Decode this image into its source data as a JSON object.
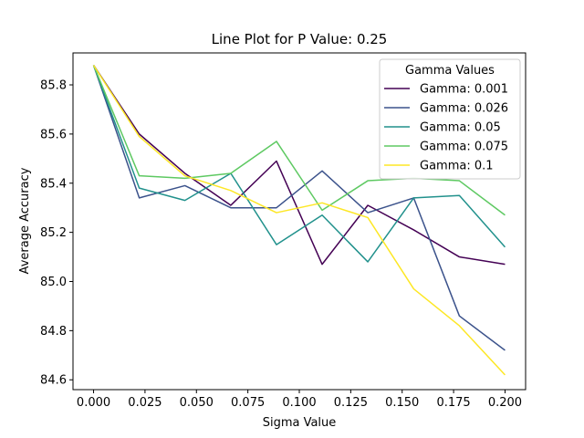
{
  "chart_data": {
    "type": "line",
    "title": "Line Plot for P Value: 0.25",
    "xlabel": "Sigma Value",
    "ylabel": "Average Accuracy",
    "xlim": [
      -0.01,
      0.21
    ],
    "ylim": [
      84.56,
      85.93
    ],
    "xticks": [
      "0.000",
      "0.025",
      "0.050",
      "0.075",
      "0.100",
      "0.125",
      "0.150",
      "0.175",
      "0.200"
    ],
    "yticks": [
      "84.6",
      "84.8",
      "85.0",
      "85.2",
      "85.4",
      "85.6",
      "85.8"
    ],
    "grid": false,
    "legend_title": "Gamma Values",
    "legend_position": "top-right",
    "x": [
      0.0,
      0.0222,
      0.0444,
      0.0667,
      0.0889,
      0.1111,
      0.1333,
      0.1556,
      0.1778,
      0.2
    ],
    "series": [
      {
        "name": "Gamma: 0.001",
        "color": "#440154",
        "values": [
          85.88,
          85.6,
          85.44,
          85.31,
          85.49,
          85.07,
          85.31,
          85.21,
          85.1,
          85.07
        ]
      },
      {
        "name": "Gamma: 0.026",
        "color": "#3b528b",
        "values": [
          85.88,
          85.34,
          85.39,
          85.3,
          85.3,
          85.45,
          85.28,
          85.34,
          84.86,
          84.72
        ]
      },
      {
        "name": "Gamma: 0.05",
        "color": "#21918c",
        "values": [
          85.88,
          85.38,
          85.33,
          85.44,
          85.15,
          85.27,
          85.08,
          85.34,
          85.35,
          85.14
        ]
      },
      {
        "name": "Gamma: 0.075",
        "color": "#5ec962",
        "values": [
          85.88,
          85.43,
          85.42,
          85.44,
          85.57,
          85.29,
          85.41,
          85.42,
          85.41,
          85.27
        ]
      },
      {
        "name": "Gamma: 0.1",
        "color": "#fde725",
        "values": [
          85.88,
          85.59,
          85.43,
          85.37,
          85.28,
          85.32,
          85.26,
          84.97,
          84.82,
          84.62
        ]
      }
    ]
  }
}
